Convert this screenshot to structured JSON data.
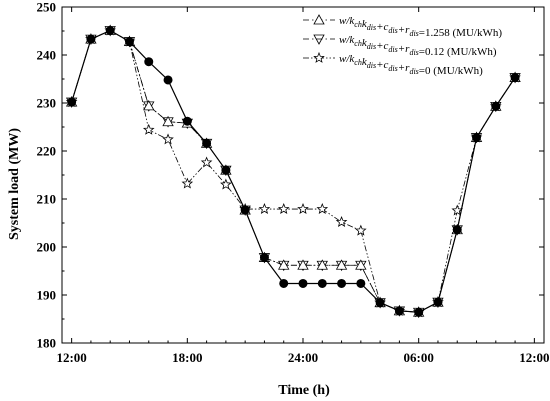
{
  "chart_data": {
    "type": "line",
    "xlabel": "Time (h)",
    "ylabel": "System load (MW)",
    "xlim": [
      11.5,
      36.5
    ],
    "ylim": [
      180,
      250
    ],
    "x_ticks": [
      12,
      18,
      24,
      30,
      36
    ],
    "x_tick_labels": [
      "12:00",
      "18:00",
      "24:00",
      "06:00",
      "12:00"
    ],
    "y_ticks": [
      180,
      190,
      200,
      210,
      220,
      230,
      240,
      250
    ],
    "y_tick_labels": [
      "180",
      "190",
      "200",
      "210",
      "220",
      "230",
      "240",
      "250"
    ],
    "grid": false,
    "legend_position": "top-right",
    "legend": [
      {
        "pre": "w/k",
        "sub1": "ch",
        "mid1": "k",
        "sub2": "dis",
        "mid2": "+c",
        "sub3": "dis",
        "mid3": "+r",
        "sub4": "dis",
        "post": "=1.258 (MU/kWh)"
      },
      {
        "pre": "w/k",
        "sub1": "ch",
        "mid1": "k",
        "sub2": "dis",
        "mid2": "+c",
        "sub3": "dis",
        "mid3": "+r",
        "sub4": "dis",
        "post": "=0.12 (MU/kWh)"
      },
      {
        "pre": "w/k",
        "sub1": "ch",
        "mid1": "k",
        "sub2": "dis",
        "mid2": "+c",
        "sub3": "dis",
        "mid3": "+r",
        "sub4": "dis",
        "post": "=0 (MU/kWh)"
      }
    ],
    "series": [
      {
        "marker": "circle",
        "style": "solid",
        "x": [
          12,
          13,
          14,
          15,
          16,
          17,
          18,
          19,
          20,
          21,
          22,
          23,
          24,
          25,
          26,
          27,
          28,
          29,
          30,
          31,
          32,
          33,
          34,
          35
        ],
        "y": [
          230.2,
          243.3,
          245.1,
          242.8,
          238.6,
          234.8,
          226.2,
          221.6,
          216.0,
          207.7,
          197.8,
          192.4,
          192.4,
          192.4,
          192.4,
          192.4,
          188.4,
          186.7,
          186.4,
          188.5,
          203.6,
          222.8,
          229.3,
          235.3
        ]
      },
      {
        "marker": "triangle-up",
        "style": "dash-dot",
        "x": [
          12,
          13,
          14,
          15,
          16,
          17,
          18,
          19,
          20,
          21,
          22,
          23,
          24,
          25,
          26,
          27,
          28,
          29,
          30,
          31,
          32,
          33,
          34,
          35
        ],
        "y": [
          230.2,
          243.3,
          245.1,
          242.8,
          229.4,
          226.1,
          225.8,
          221.6,
          216.0,
          207.7,
          197.8,
          196.2,
          196.2,
          196.2,
          196.2,
          196.2,
          188.4,
          186.7,
          186.4,
          188.5,
          203.6,
          222.8,
          229.3,
          235.3
        ]
      },
      {
        "marker": "triangle-down",
        "style": "dash-dot-dot",
        "x": [
          12,
          13,
          14,
          15,
          16,
          17,
          18,
          19,
          20,
          21,
          22,
          23,
          24,
          25,
          26,
          27,
          28,
          29,
          30,
          31,
          32,
          33,
          34,
          35
        ],
        "y": [
          230.2,
          243.3,
          245.1,
          242.8,
          229.4,
          226.1,
          225.8,
          221.6,
          216.0,
          207.7,
          197.8,
          196.2,
          196.2,
          196.2,
          196.2,
          196.2,
          188.4,
          186.7,
          186.4,
          188.5,
          203.6,
          222.8,
          229.3,
          235.3
        ]
      },
      {
        "marker": "star",
        "style": "dash-dot-dot",
        "x": [
          12,
          13,
          14,
          15,
          16,
          17,
          18,
          19,
          20,
          21,
          22,
          23,
          24,
          25,
          26,
          27,
          28,
          29,
          30,
          31,
          32,
          33,
          34,
          35
        ],
        "y": [
          230.2,
          243.3,
          245.1,
          242.8,
          224.4,
          222.4,
          213.2,
          217.6,
          213.0,
          207.9,
          207.9,
          207.9,
          207.9,
          207.9,
          205.2,
          203.4,
          188.4,
          186.7,
          186.4,
          188.5,
          207.6,
          222.8,
          229.3,
          235.3
        ]
      }
    ]
  }
}
